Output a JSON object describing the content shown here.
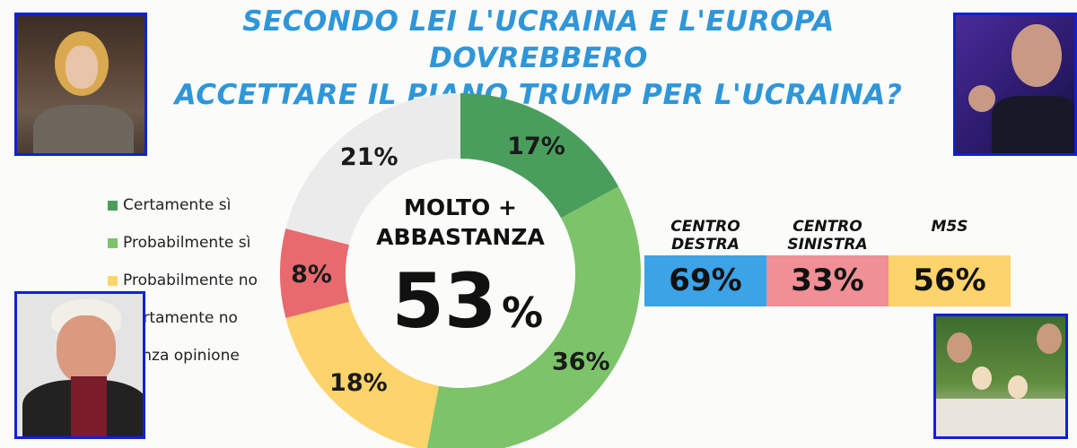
{
  "title_lines": [
    "SECONDO LEI L'UCRAINA E L'EUROPA DOVREBBERO",
    "ACCETTARE IL PIANO TRUMP PER L'UCRAINA?"
  ],
  "chart_data": {
    "type": "pie",
    "donut": true,
    "title": "SECONDO LEI L'UCRAINA E L'EUROPA DOVREBBERO ACCETTARE IL PIANO TRUMP PER L'UCRAINA?",
    "categories": [
      "Certamente sì",
      "Probabilmente sì",
      "Probabilmente no",
      "Certamente no",
      "Senza opinione"
    ],
    "values": [
      17,
      36,
      18,
      8,
      21
    ],
    "labels": [
      "17%",
      "36%",
      "18%",
      "8%",
      "21%"
    ],
    "colors": [
      "#4a9e5c",
      "#7cc36a",
      "#fdd36b",
      "#e86a6f",
      "#ebebeb"
    ],
    "legend_position": "left",
    "center_text": {
      "line1": "MOLTO +",
      "line2": "ABBASTANZA",
      "value": "53",
      "unit": "%"
    },
    "breakdown": {
      "categories": [
        "CENTRO DESTRA",
        "CENTRO SINISTRA",
        "M5S"
      ],
      "label_lines": [
        [
          "CENTRO",
          "DESTRA"
        ],
        [
          "CENTRO",
          "SINISTRA"
        ],
        [
          "M5S"
        ]
      ],
      "values": [
        69,
        33,
        56
      ],
      "labels": [
        "69%",
        "33%",
        "56%"
      ],
      "colors": [
        "#3ba3e6",
        "#f08f95",
        "#fdd36b"
      ]
    }
  }
}
